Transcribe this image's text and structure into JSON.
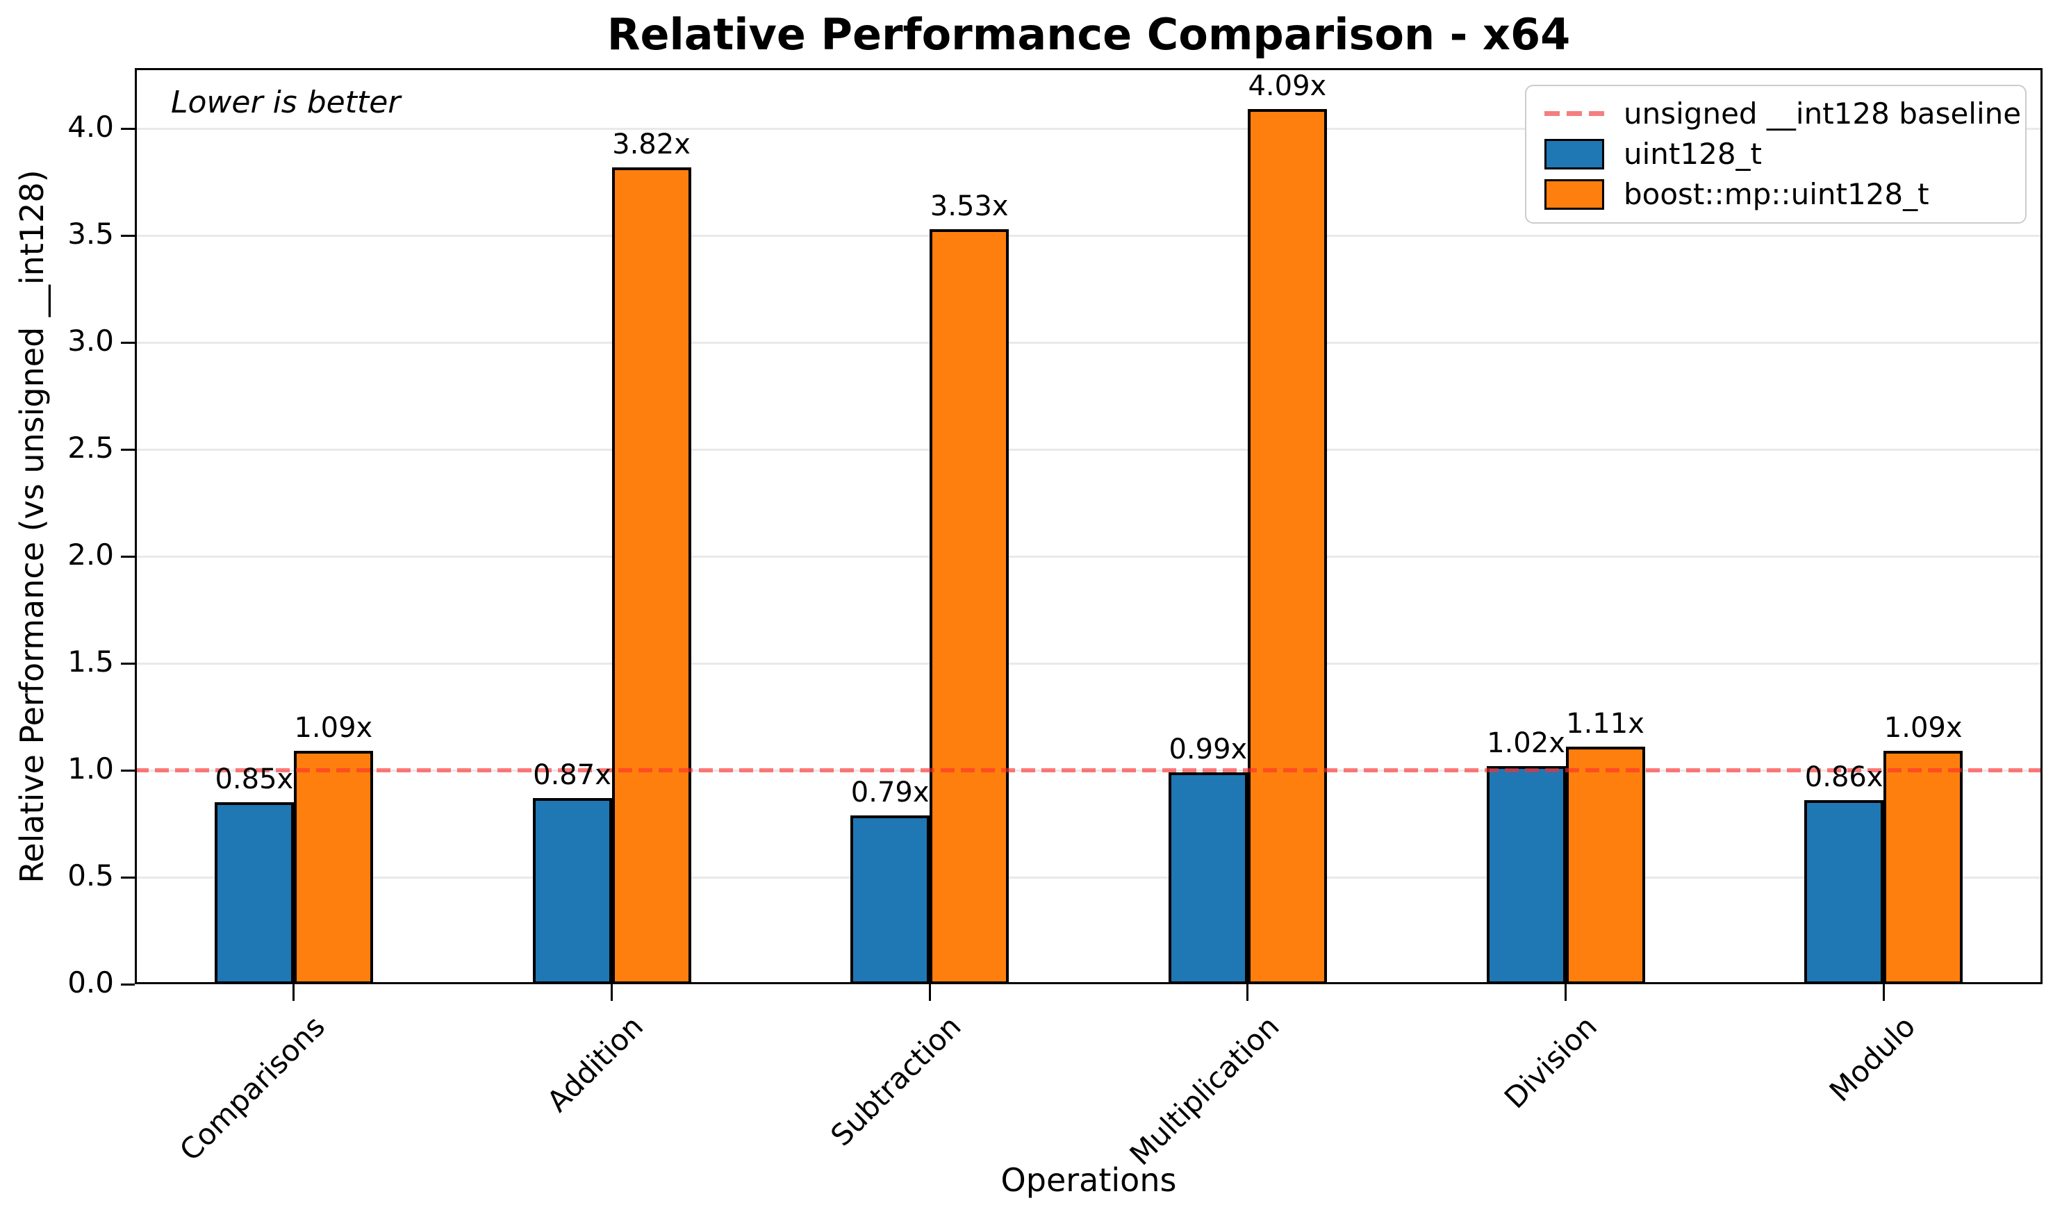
{
  "chart_data": {
    "type": "bar",
    "title": "Relative Performance Comparison - x64",
    "xlabel": "Operations",
    "ylabel": "Relative Performance (vs unsigned __int128)",
    "annotation": "Lower is better",
    "categories": [
      "Comparisons",
      "Addition",
      "Subtraction",
      "Multiplication",
      "Division",
      "Modulo"
    ],
    "series": [
      {
        "name": "uint128_t",
        "color": "#1f77b4",
        "values": [
          0.85,
          0.87,
          0.79,
          0.99,
          1.02,
          0.86
        ]
      },
      {
        "name": "boost::mp::uint128_t",
        "color": "#ff7f0e",
        "values": [
          1.09,
          3.82,
          3.53,
          4.09,
          1.11,
          1.09
        ]
      }
    ],
    "value_label_suffix": "x",
    "baseline": {
      "value": 1.0,
      "label": "unsigned __int128 baseline",
      "color": "#f57f7f",
      "overlay_rgba": "rgba(255,45,45,0.62)",
      "style": "dashed"
    },
    "ylim": [
      0,
      4.283
    ],
    "yticks": [
      0.0,
      0.5,
      1.0,
      1.5,
      2.0,
      2.5,
      3.0,
      3.5,
      4.0
    ],
    "grid": true,
    "grid_color": "#e9e9e9",
    "bar_edge": "#000000",
    "axis_color": "#000000",
    "legend_position": "upper right"
  }
}
